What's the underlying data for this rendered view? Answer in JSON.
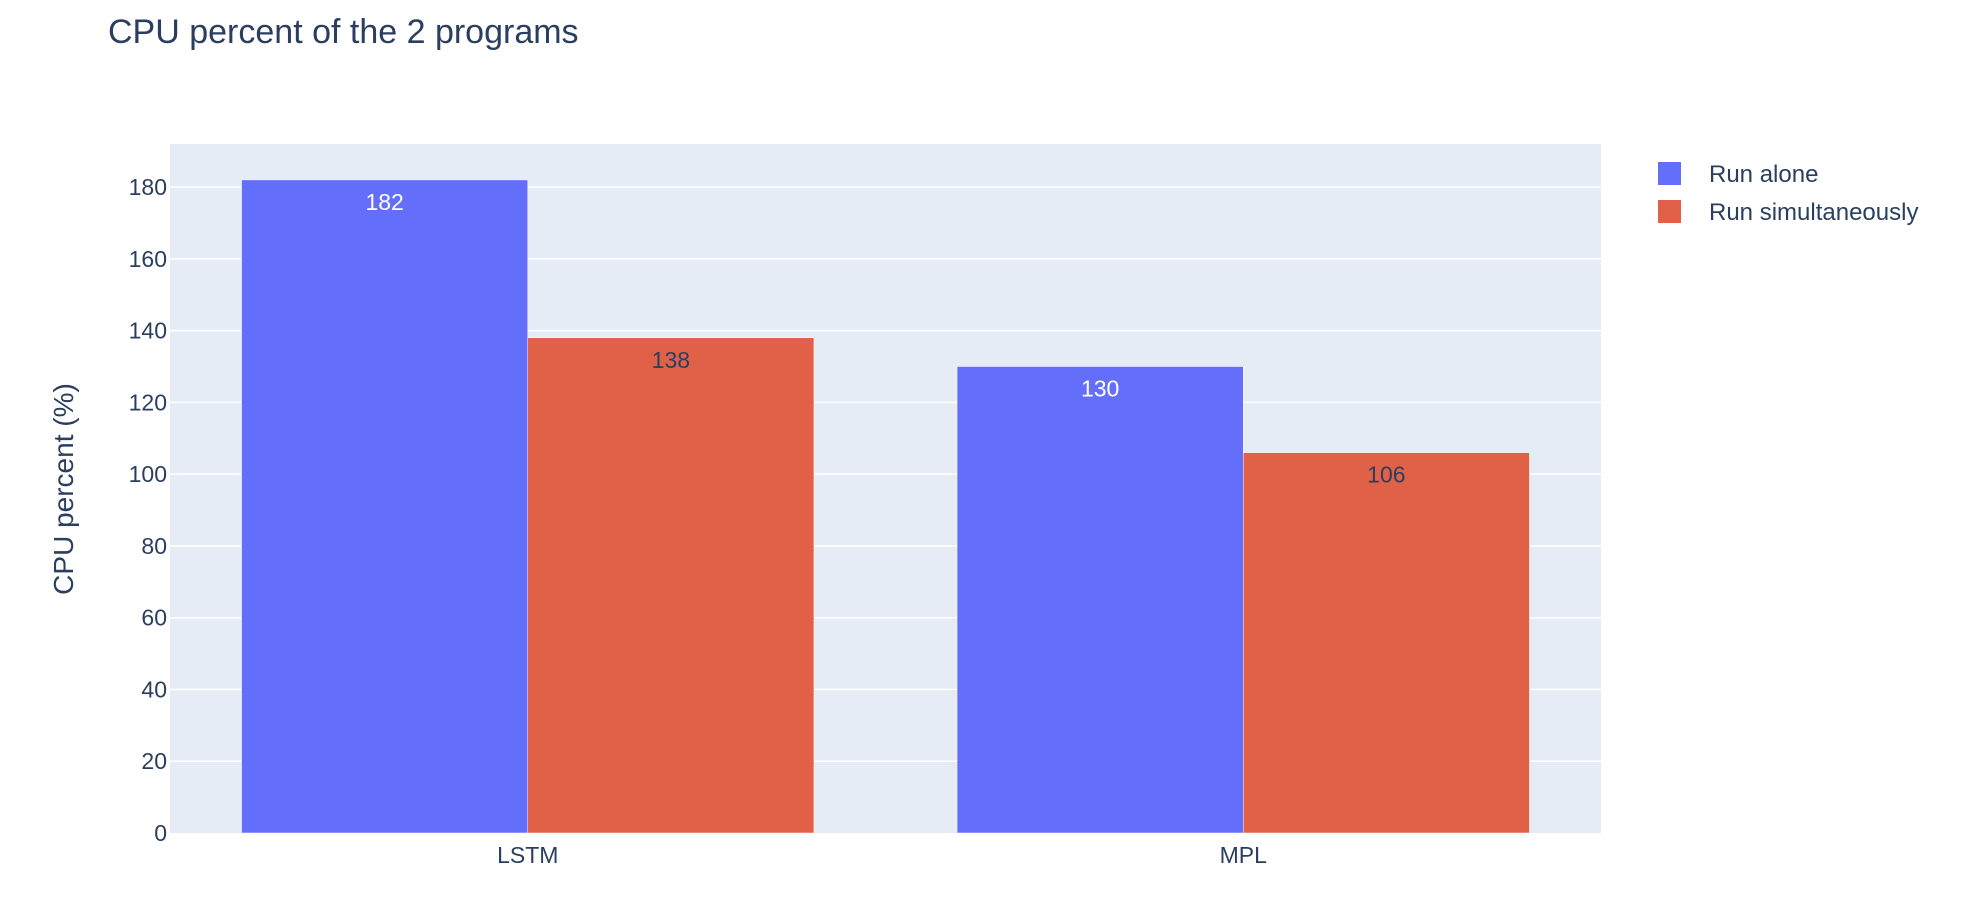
{
  "chart_data": {
    "type": "bar",
    "title": "CPU percent of the 2 programs",
    "xlabel": "",
    "ylabel": "CPU percent (%)",
    "categories": [
      "LSTM",
      "MPL"
    ],
    "series": [
      {
        "name": "Run alone",
        "values": [
          182,
          130
        ],
        "color": "#636efa",
        "label_color": "#ffffff"
      },
      {
        "name": "Run simultaneously",
        "values": [
          138,
          106
        ],
        "color": "#e06148",
        "label_color": "#2a3f5f"
      }
    ],
    "ylim": [
      0,
      192
    ],
    "yticks": [
      0,
      20,
      40,
      60,
      80,
      100,
      120,
      140,
      160,
      180
    ],
    "grid": true,
    "legend_position": "top-right",
    "plot_background": "#e5ecf6"
  }
}
